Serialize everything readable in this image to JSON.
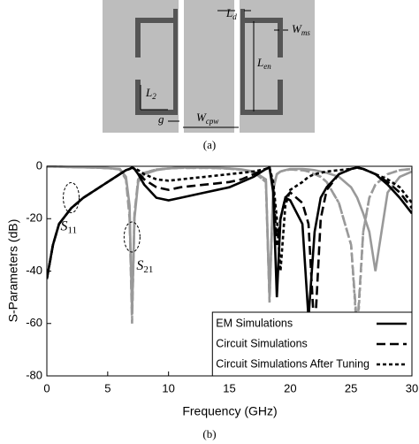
{
  "diagram": {
    "labels": [
      {
        "main": "L",
        "sub": "d"
      },
      {
        "main": "W",
        "sub": "ms"
      },
      {
        "main": "L",
        "sub": "en"
      },
      {
        "main": "L",
        "sub": "2"
      },
      {
        "main": "g"
      },
      {
        "main": "W",
        "sub": "cpw"
      }
    ],
    "caption": "(a)"
  },
  "chart_data": {
    "type": "line",
    "caption": "(b)",
    "xlabel": "Frequency (GHz)",
    "ylabel": "S-Parameters (dB)",
    "xlim": [
      0,
      30
    ],
    "ylim": [
      -80,
      0
    ],
    "xticks": [
      0,
      5,
      10,
      15,
      20,
      25,
      30
    ],
    "yticks": [
      0,
      -20,
      -40,
      -60,
      -80
    ],
    "grid": false,
    "legend": "lower right",
    "annotations": [
      {
        "label": "S",
        "subscript": "11",
        "x": 2,
        "y": -12
      },
      {
        "label": "S",
        "subscript": "21",
        "x": 7,
        "y": -27
      }
    ],
    "x": [
      0,
      0.5,
      1,
      2,
      3,
      4,
      5,
      6,
      6.5,
      6.8,
      7,
      7.2,
      7.5,
      8,
      9,
      10,
      11,
      12,
      13,
      14,
      15,
      16,
      17,
      18,
      18.3,
      18.6,
      18.9,
      19.2,
      19.6,
      20,
      21,
      21.5,
      22,
      22.5,
      23,
      24,
      25,
      25.5,
      26,
      26.5,
      27,
      28,
      29,
      30
    ],
    "series": [
      {
        "name": "EM Simulations",
        "dash": "solid",
        "curves": [
          {
            "color": "#000000",
            "values": [
              -43,
              -30,
              -22,
              -16,
              -12,
              -9,
              -6,
              -3,
              -1.5,
              -1,
              -0.5,
              -1,
              -3,
              -7,
              -12,
              -13,
              -12,
              -11,
              -10,
              -9,
              -8,
              -6,
              -4,
              -1,
              -0.5,
              -10,
              -50,
              -20,
              -12,
              -13,
              -22,
              -58,
              -25,
              -12,
              -8,
              -3,
              -1,
              -0.5,
              -1,
              -2,
              -3,
              -7,
              -12,
              -18
            ]
          },
          {
            "color": "#999999",
            "values": [
              -0.1,
              -0.1,
              -0.2,
              -0.3,
              -0.4,
              -0.5,
              -0.7,
              -1,
              -4,
              -15,
              -56,
              -20,
              -6,
              -3,
              -1.5,
              -0.8,
              -0.5,
              -0.5,
              -0.5,
              -0.6,
              -0.8,
              -1.2,
              -2,
              -5,
              -50,
              -8,
              -3,
              -2,
              -1.5,
              -1,
              -1,
              -1.2,
              -1.5,
              -2,
              -2.5,
              -4,
              -8,
              -12,
              -18,
              -25,
              -40,
              -10,
              -4,
              -2
            ]
          }
        ]
      },
      {
        "name": "Circuit Simulations",
        "dash": "dashed",
        "curves": [
          {
            "color": "#000000",
            "values": [
              -43,
              -30,
              -22,
              -16,
              -12,
              -9,
              -6,
              -3,
              -1.5,
              -1,
              -0.5,
              -1,
              -2.5,
              -5,
              -8,
              -9,
              -8,
              -7.5,
              -7,
              -6.5,
              -6,
              -5,
              -3,
              -1,
              -0.5,
              -8,
              -30,
              -20,
              -12,
              -10,
              -14,
              -22,
              -65,
              -20,
              -9,
              -3,
              -1,
              -0.5,
              -1,
              -2,
              -3,
              -6,
              -10,
              -16
            ]
          },
          {
            "color": "#999999",
            "values": [
              -0.1,
              -0.1,
              -0.2,
              -0.3,
              -0.4,
              -0.5,
              -0.7,
              -1.2,
              -5,
              -20,
              -60,
              -18,
              -5,
              -2.5,
              -1.2,
              -0.8,
              -0.6,
              -0.6,
              -0.6,
              -0.7,
              -0.9,
              -1.3,
              -2.2,
              -6,
              -52,
              -9,
              -3,
              -2,
              -1.5,
              -1.2,
              -1.5,
              -2,
              -3,
              -4,
              -6,
              -14,
              -30,
              -62,
              -25,
              -12,
              -7,
              -3,
              -1.5,
              -1
            ]
          }
        ]
      },
      {
        "name": "Circuit Simulations After Tuning",
        "dash": "dotted",
        "curves": [
          {
            "color": "#000000",
            "values": [
              -43,
              -30,
              -22,
              -16,
              -12,
              -9,
              -6,
              -3,
              -1.5,
              -1,
              -0.5,
              -0.8,
              -1.5,
              -3,
              -5,
              -5.5,
              -5,
              -4.5,
              -4,
              -3.5,
              -3,
              -2.5,
              -2,
              -1,
              -0.5,
              -6,
              -20,
              -40,
              -15,
              -9,
              -6,
              -4,
              -3,
              -2.5,
              -2,
              -1.5,
              -1,
              -0.5,
              -1,
              -2,
              -3,
              -5,
              -8,
              -14
            ]
          },
          {
            "color": "#999999",
            "values": [
              -0.1,
              -0.1,
              -0.2,
              -0.3,
              -0.4,
              -0.5,
              -0.7,
              -1.1,
              -5,
              -18,
              -58,
              -19,
              -5,
              -2.5,
              -1.2,
              -0.8,
              -0.6,
              -0.6,
              -0.6,
              -0.7,
              -0.9,
              -1.3,
              -2.2,
              -6,
              -50,
              -9,
              -3,
              -2,
              -1.5,
              -1.2,
              -1.5,
              -2,
              -3,
              -4,
              -6,
              -14,
              -30,
              -65,
              -25,
              -12,
              -7,
              -3,
              -1.5,
              -1
            ]
          }
        ]
      }
    ]
  }
}
